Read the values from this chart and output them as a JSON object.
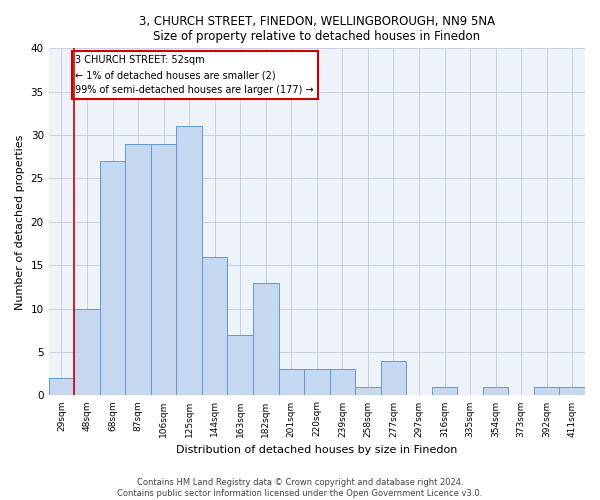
{
  "title_line1": "3, CHURCH STREET, FINEDON, WELLINGBOROUGH, NN9 5NA",
  "title_line2": "Size of property relative to detached houses in Finedon",
  "xlabel": "Distribution of detached houses by size in Finedon",
  "ylabel": "Number of detached properties",
  "categories": [
    "29sqm",
    "48sqm",
    "68sqm",
    "87sqm",
    "106sqm",
    "125sqm",
    "144sqm",
    "163sqm",
    "182sqm",
    "201sqm",
    "220sqm",
    "239sqm",
    "258sqm",
    "277sqm",
    "297sqm",
    "316sqm",
    "335sqm",
    "354sqm",
    "373sqm",
    "392sqm",
    "411sqm"
  ],
  "values": [
    2,
    10,
    27,
    29,
    29,
    31,
    16,
    7,
    13,
    3,
    3,
    3,
    1,
    4,
    0,
    1,
    0,
    1,
    0,
    1,
    1
  ],
  "bar_color": "#c5d8f0",
  "bar_edge_color": "#5b9bd5",
  "subject_label": "3 CHURCH STREET: 52sqm",
  "annotation_line1": "← 1% of detached houses are smaller (2)",
  "annotation_line2": "99% of semi-detached houses are larger (177) →",
  "annotation_box_color": "#ffffff",
  "annotation_box_edge_color": "#cc0000",
  "subject_line_color": "#cc0000",
  "ylim": [
    0,
    40
  ],
  "yticks": [
    0,
    5,
    10,
    15,
    20,
    25,
    30,
    35,
    40
  ],
  "footer_line1": "Contains HM Land Registry data © Crown copyright and database right 2024.",
  "footer_line2": "Contains public sector information licensed under the Open Government Licence v3.0.",
  "background_color": "#eef2f9"
}
